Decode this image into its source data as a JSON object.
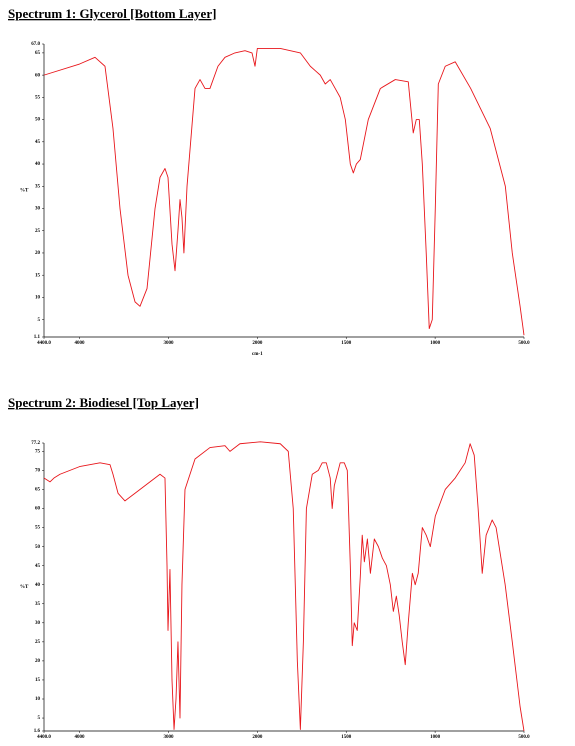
{
  "chart_data": [
    {
      "type": "line",
      "title": "Spectrum 1: Glycerol [Bottom Layer]",
      "x_label": "cm-1",
      "y_label": "%T",
      "xlim": [
        4400,
        500
      ],
      "x_scale_break": 2000,
      "x_scale_factor": 2,
      "xticks": [
        {
          "value": 4400,
          "label": "4400.0"
        },
        4000,
        3000,
        2000,
        1500,
        1000,
        {
          "value": 500,
          "label": "500.0"
        }
      ],
      "ylim": [
        1.1,
        67
      ],
      "yticks": [
        1.1,
        5,
        10,
        15,
        20,
        25,
        30,
        35,
        40,
        45,
        50,
        55,
        60,
        65,
        {
          "value": 67,
          "label": "67.0"
        }
      ],
      "series": [
        {
          "color": "#e8161b",
          "x": [
            4400,
            4000,
            3826,
            3714,
            3624,
            3545,
            3455,
            3376,
            3320,
            3241,
            3151,
            3095,
            3039,
            3005,
            2960,
            2926,
            2893,
            2870,
            2848,
            2826,
            2791,
            2701,
            2645,
            2589,
            2533,
            2443,
            2364,
            2252,
            2139,
            2060,
            2026,
            2000,
            1871,
            1758,
            1702,
            1674,
            1646,
            1618,
            1590,
            1562,
            1534,
            1505,
            1477,
            1460,
            1443,
            1421,
            1376,
            1308,
            1224,
            1151,
            1123,
            1106,
            1089,
            1072,
            1050,
            1033,
            1016,
            999,
            982,
            943,
            887,
            800,
            690,
            605,
            566,
            522,
            500
          ],
          "values": [
            60,
            62.5,
            64,
            62,
            48,
            30,
            15,
            9,
            8,
            12,
            30,
            37,
            39,
            37,
            22,
            16,
            25,
            32,
            28,
            20,
            35,
            57,
            59,
            57,
            57,
            62,
            64,
            65,
            65.5,
            65,
            62,
            66,
            66,
            65,
            62,
            61,
            60,
            58,
            59,
            57,
            55,
            50,
            40,
            38,
            40,
            41,
            50,
            57,
            59,
            58.5,
            47,
            50,
            50,
            40,
            20,
            3,
            5,
            30,
            58,
            62,
            63,
            57,
            48,
            35,
            20,
            8,
            1.5
          ]
        }
      ]
    },
    {
      "type": "line",
      "title": "Spectrum 2: Biodiesel [Top Layer]",
      "y_label": "%T",
      "xlim": [
        4400,
        500
      ],
      "x_scale_break": 2000,
      "x_scale_factor": 2,
      "xticks": [
        {
          "value": 4400,
          "label": "4400.0"
        },
        4000,
        3000,
        2000,
        1500,
        1000,
        {
          "value": 500,
          "label": "500.0"
        }
      ],
      "ylim": [
        1.6,
        77.2
      ],
      "yticks": [
        1.6,
        5,
        10,
        15,
        20,
        25,
        30,
        35,
        40,
        45,
        50,
        55,
        60,
        65,
        70,
        75,
        77.2
      ],
      "series": [
        {
          "color": "#e8161b",
          "x": [
            4400,
            4332,
            4288,
            4220,
            4000,
            3770,
            3657,
            3624,
            3567,
            3489,
            3376,
            3208,
            3095,
            3039,
            3016,
            3005,
            2983,
            2960,
            2937,
            2915,
            2893,
            2870,
            2848,
            2814,
            2701,
            2533,
            2364,
            2308,
            2196,
            1983,
            1871,
            1826,
            1798,
            1775,
            1758,
            1741,
            1724,
            1691,
            1657,
            1635,
            1612,
            1590,
            1579,
            1567,
            1534,
            1511,
            1494,
            1477,
            1466,
            1455,
            1438,
            1421,
            1410,
            1398,
            1381,
            1364,
            1342,
            1319,
            1297,
            1274,
            1252,
            1235,
            1218,
            1202,
            1185,
            1168,
            1151,
            1128,
            1112,
            1095,
            1072,
            1050,
            1027,
            999,
            943,
            887,
            859,
            831,
            803,
            780,
            758,
            735,
            713,
            679,
            657,
            606,
            566,
            522,
            500
          ],
          "values": [
            68,
            67,
            68,
            69,
            71,
            72,
            71.5,
            69,
            64,
            62,
            64,
            67,
            69,
            68,
            45,
            28,
            44,
            15,
            2,
            10,
            25,
            5,
            40,
            65,
            73,
            76,
            76.5,
            75,
            77,
            77.5,
            77,
            75,
            60,
            20,
            2,
            25,
            60,
            69,
            70,
            72,
            72,
            68,
            60,
            66,
            72,
            72,
            70,
            45,
            24,
            30,
            28,
            42,
            53,
            46,
            52,
            43,
            52,
            50,
            47,
            45,
            40,
            33,
            37,
            32,
            25,
            19,
            30,
            43,
            40,
            43,
            55,
            53,
            50,
            58,
            65,
            68,
            70,
            72,
            77,
            74,
            60,
            43,
            53,
            57,
            55,
            40,
            25,
            8,
            1.6
          ]
        }
      ]
    }
  ]
}
